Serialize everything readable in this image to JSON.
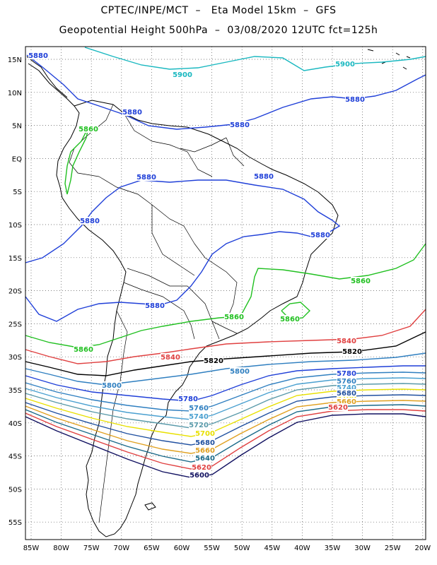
{
  "header": {
    "line1": "CPTEC/INPE/MCT  –   Eta Model 15km  –  GFS",
    "line2": "Geopotential Height 500hPa  –  03/08/2020 12UTC fct=125h"
  },
  "axes": {
    "lat_labels": [
      "15N",
      "10N",
      "5N",
      "EQ",
      "5S",
      "10S",
      "15S",
      "20S",
      "25S",
      "30S",
      "35S",
      "40S",
      "45S",
      "50S",
      "55S"
    ],
    "lon_labels": [
      "85W",
      "80W",
      "75W",
      "70W",
      "65W",
      "60W",
      "55W",
      "50W",
      "45W",
      "40W",
      "35W",
      "30W",
      "25W",
      "20W"
    ]
  },
  "contours": [
    {
      "value": "5900",
      "color": "#1ab8c0"
    },
    {
      "value": "5880",
      "color": "#1f3fd8"
    },
    {
      "value": "5860",
      "color": "#20c020"
    },
    {
      "value": "5840",
      "color": "#e04040"
    },
    {
      "value": "5820",
      "color": "#000000"
    },
    {
      "value": "5800",
      "color": "#2f7fc0"
    },
    {
      "value": "5780",
      "color": "#1f3fd8"
    },
    {
      "value": "5760",
      "color": "#2f7fc0"
    },
    {
      "value": "5740",
      "color": "#4aa0d0"
    },
    {
      "value": "5720",
      "color": "#5a9aaa"
    },
    {
      "value": "5700",
      "color": "#e8e000"
    },
    {
      "value": "5680",
      "color": "#2050a0"
    },
    {
      "value": "5660",
      "color": "#e0a020"
    },
    {
      "value": "5640",
      "color": "#1a6a8a"
    },
    {
      "value": "5620",
      "color": "#e04040"
    },
    {
      "value": "5600",
      "color": "#101060"
    }
  ]
}
